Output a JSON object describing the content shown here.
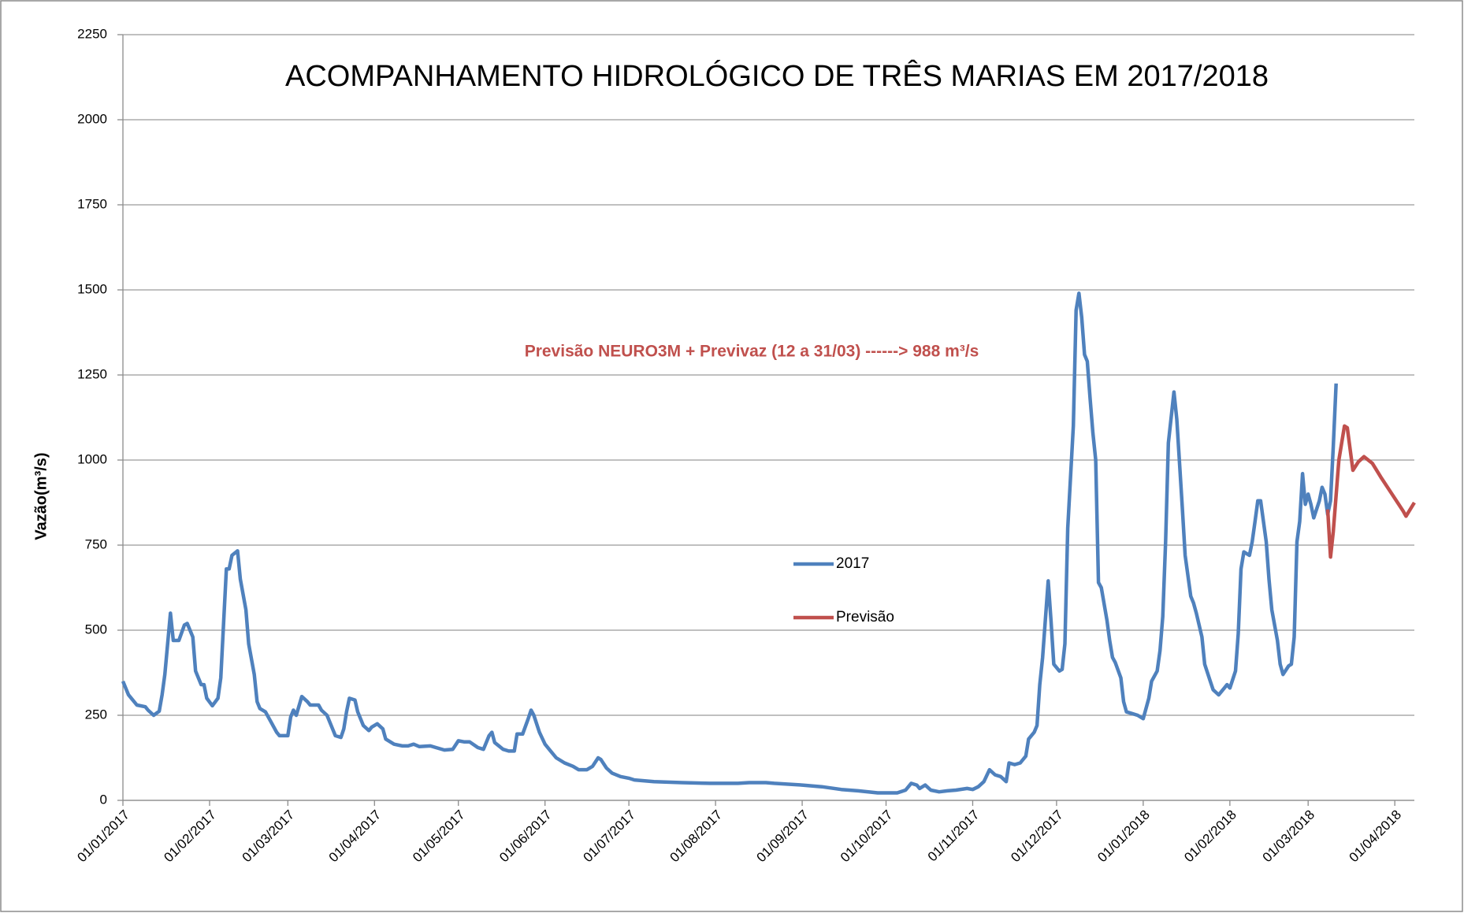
{
  "chart_data": {
    "type": "line",
    "title": "ACOMPANHAMENTO HIDROLÓGICO DE TRÊS MARIAS EM 2017/2018",
    "annotation": "Previsão NEURO3M + Previvaz (12 a 31/03)   ------> 988 m³/s",
    "y_label": "Vazão(m³/s)",
    "ylim": [
      0,
      2250
    ],
    "yticks": [
      0,
      250,
      500,
      750,
      1000,
      1250,
      1500,
      1750,
      2000,
      2250
    ],
    "xlim": [
      "01/01/2017",
      "08/04/2018"
    ],
    "xticks": [
      "01/01/2017",
      "01/02/2017",
      "01/03/2017",
      "01/04/2017",
      "01/05/2017",
      "01/06/2017",
      "01/07/2017",
      "01/08/2017",
      "01/09/2017",
      "01/10/2017",
      "01/11/2017",
      "01/12/2017",
      "01/01/2018",
      "01/02/2018",
      "01/03/2018",
      "01/04/2018"
    ],
    "grid": true,
    "legend": "center",
    "series": [
      {
        "name": "2017",
        "color": "#4f81bd",
        "x": [
          "01/01/2017",
          "03/01/2017",
          "06/01/2017",
          "09/01/2017",
          "10/01/2017",
          "12/01/2017",
          "14/01/2017",
          "15/01/2017",
          "16/01/2017",
          "18/01/2017",
          "19/01/2017",
          "21/01/2017",
          "23/01/2017",
          "24/01/2017",
          "26/01/2017",
          "27/01/2017",
          "29/01/2017",
          "30/01/2017",
          "31/01/2017",
          "02/02/2017",
          "04/02/2017",
          "05/02/2017",
          "07/02/2017",
          "08/02/2017",
          "09/02/2017",
          "11/02/2017",
          "12/02/2017",
          "14/02/2017",
          "15/02/2017",
          "17/02/2017",
          "18/02/2017",
          "19/02/2017",
          "21/02/2017",
          "23/02/2017",
          "25/02/2017",
          "26/02/2017",
          "01/03/2017",
          "02/03/2017",
          "03/03/2017",
          "04/03/2017",
          "06/03/2017",
          "08/03/2017",
          "09/03/2017",
          "12/03/2017",
          "13/03/2017",
          "15/03/2017",
          "17/03/2017",
          "18/03/2017",
          "20/03/2017",
          "21/03/2017",
          "22/03/2017",
          "23/03/2017",
          "25/03/2017",
          "26/03/2017",
          "28/03/2017",
          "30/03/2017",
          "31/03/2017",
          "02/04/2017",
          "04/04/2017",
          "05/04/2017",
          "08/04/2017",
          "11/04/2017",
          "13/04/2017",
          "15/04/2017",
          "17/04/2017",
          "21/04/2017",
          "23/04/2017",
          "26/04/2017",
          "29/04/2017",
          "01/05/2017",
          "03/05/2017",
          "05/05/2017",
          "08/05/2017",
          "10/05/2017",
          "12/05/2017",
          "13/05/2017",
          "14/05/2017",
          "17/05/2017",
          "19/05/2017",
          "21/05/2017",
          "22/05/2017",
          "24/05/2017",
          "26/05/2017",
          "27/05/2017",
          "28/05/2017",
          "30/05/2017",
          "01/06/2017",
          "03/06/2017",
          "05/06/2017",
          "08/06/2017",
          "11/06/2017",
          "13/06/2017",
          "16/06/2017",
          "18/06/2017",
          "20/06/2017",
          "21/06/2017",
          "23/06/2017",
          "25/06/2017",
          "28/06/2017",
          "01/07/2017",
          "03/07/2017",
          "10/07/2017",
          "20/07/2017",
          "30/07/2017",
          "09/08/2017",
          "13/08/2017",
          "19/08/2017",
          "22/08/2017",
          "01/09/2017",
          "08/09/2017",
          "15/09/2017",
          "21/09/2017",
          "28/09/2017",
          "05/10/2017",
          "08/10/2017",
          "10/10/2017",
          "12/10/2017",
          "13/10/2017",
          "15/10/2017",
          "17/10/2017",
          "20/10/2017",
          "23/10/2017",
          "26/10/2017",
          "30/10/2017",
          "01/11/2017",
          "03/11/2017",
          "05/11/2017",
          "07/11/2017",
          "09/11/2017",
          "11/11/2017",
          "13/11/2017",
          "14/11/2017",
          "16/11/2017",
          "18/11/2017",
          "20/11/2017",
          "21/11/2017",
          "23/11/2017",
          "24/11/2017",
          "25/11/2017",
          "26/11/2017",
          "28/11/2017",
          "29/11/2017",
          "30/11/2017",
          "02/12/2017",
          "03/12/2017",
          "04/12/2017",
          "05/12/2017",
          "07/12/2017",
          "08/12/2017",
          "09/12/2017",
          "10/12/2017",
          "11/12/2017",
          "12/12/2017",
          "13/12/2017",
          "14/12/2017",
          "15/12/2017",
          "16/12/2017",
          "17/12/2017",
          "19/12/2017",
          "20/12/2017",
          "21/12/2017",
          "22/12/2017",
          "24/12/2017",
          "25/12/2017",
          "26/12/2017",
          "28/12/2017",
          "30/12/2017",
          "01/01/2018",
          "03/01/2018",
          "04/01/2018",
          "06/01/2018",
          "07/01/2018",
          "08/01/2018",
          "09/01/2018",
          "10/01/2018",
          "12/01/2018",
          "13/01/2018",
          "14/01/2018",
          "15/01/2018",
          "16/01/2018",
          "18/01/2018",
          "19/01/2018",
          "20/01/2018",
          "22/01/2018",
          "23/01/2018",
          "25/01/2018",
          "26/01/2018",
          "28/01/2018",
          "30/01/2018",
          "31/01/2018",
          "01/02/2018",
          "03/02/2018",
          "04/02/2018",
          "05/02/2018",
          "06/02/2018",
          "08/02/2018",
          "09/02/2018",
          "10/02/2018",
          "11/02/2018",
          "12/02/2018",
          "14/02/2018",
          "15/02/2018",
          "16/02/2018",
          "18/02/2018",
          "19/02/2018",
          "20/02/2018",
          "22/02/2018",
          "23/02/2018",
          "24/02/2018",
          "25/02/2018",
          "26/02/2018",
          "27/02/2018",
          "28/02/2018",
          "01/03/2018",
          "02/03/2018",
          "03/03/2018",
          "05/03/2018",
          "06/03/2018",
          "07/03/2018",
          "08/03/2018",
          "09/03/2018",
          "10/03/2018",
          "11/03/2018"
        ],
        "values": [
          350,
          310,
          280,
          275,
          265,
          250,
          262,
          310,
          370,
          550,
          470,
          470,
          515,
          520,
          480,
          380,
          340,
          340,
          300,
          278,
          300,
          360,
          680,
          680,
          720,
          733,
          650,
          560,
          460,
          370,
          290,
          270,
          260,
          230,
          200,
          190,
          190,
          245,
          265,
          250,
          305,
          290,
          280,
          280,
          265,
          250,
          210,
          190,
          185,
          210,
          260,
          300,
          295,
          260,
          220,
          205,
          215,
          225,
          210,
          180,
          165,
          160,
          160,
          165,
          158,
          160,
          155,
          148,
          150,
          175,
          172,
          172,
          155,
          150,
          190,
          200,
          170,
          150,
          145,
          145,
          195,
          195,
          240,
          265,
          250,
          200,
          165,
          145,
          125,
          110,
          100,
          90,
          90,
          100,
          125,
          120,
          95,
          80,
          70,
          65,
          60,
          55,
          52,
          50,
          50,
          52,
          52,
          50,
          45,
          40,
          32,
          28,
          22,
          22,
          30,
          50,
          45,
          35,
          45,
          30,
          25,
          28,
          30,
          35,
          32,
          40,
          55,
          90,
          75,
          70,
          55,
          110,
          105,
          110,
          130,
          180,
          200,
          220,
          340,
          420,
          645,
          530,
          400,
          380,
          385,
          460,
          800,
          1100,
          1440,
          1490,
          1420,
          1310,
          1290,
          1180,
          1080,
          1000,
          640,
          625,
          530,
          470,
          420,
          405,
          360,
          290,
          260,
          255,
          250,
          240,
          300,
          350,
          380,
          440,
          540,
          760,
          1050,
          1200,
          1120,
          990,
          860,
          720,
          600,
          580,
          550,
          480,
          400,
          350,
          325,
          310,
          330,
          340,
          330,
          380,
          490,
          680,
          730,
          720,
          760,
          820,
          880,
          880,
          760,
          650,
          560,
          470,
          400,
          370,
          395,
          400,
          480,
          760,
          820,
          960,
          870,
          900,
          870,
          830,
          880,
          920,
          900,
          840,
          880,
          1040,
          1225
        ]
      },
      {
        "name": "Previsão",
        "color": "#c0504d",
        "x": [
          "08/03/2018",
          "09/03/2018",
          "10/03/2018",
          "12/03/2018",
          "14/03/2018",
          "15/03/2018",
          "17/03/2018",
          "19/03/2018",
          "21/03/2018",
          "24/03/2018",
          "27/03/2018",
          "31/03/2018",
          "04/04/2018",
          "05/04/2018",
          "08/04/2018"
        ],
        "values": [
          855,
          715,
          790,
          1000,
          1100,
          1095,
          970,
          995,
          1010,
          990,
          950,
          900,
          850,
          835,
          875
        ]
      }
    ]
  }
}
